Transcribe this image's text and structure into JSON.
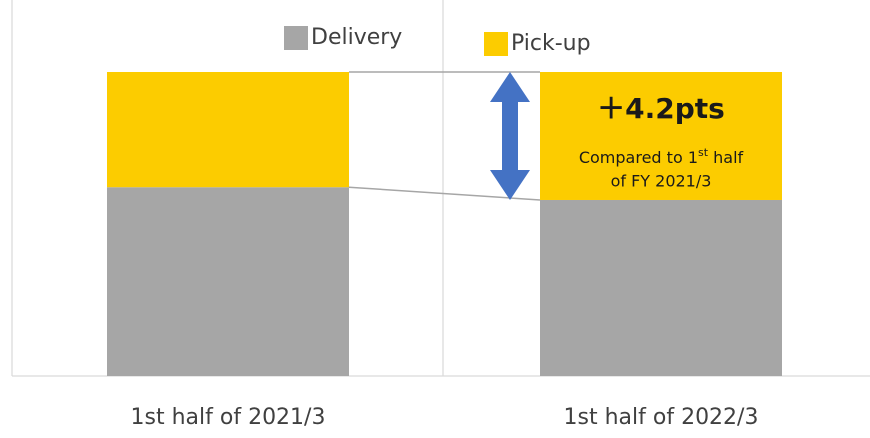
{
  "chart_data": {
    "type": "stacked_bar_100",
    "categories": [
      "1st half of 2021/3",
      "1st half of 2022/3"
    ],
    "series": [
      {
        "name": "Delivery",
        "color": "#a6a6a6",
        "values": [
          62.1,
          57.9
        ]
      },
      {
        "name": "Pick-up",
        "color": "#fccc00",
        "values": [
          37.9,
          42.1
        ]
      }
    ],
    "ylim": [
      0,
      100
    ],
    "annotation": {
      "headline": "＋4.2pts",
      "note_line1": [
        "Compared to 1",
        "st",
        " half"
      ],
      "note_line2": "of FY 2021/3",
      "arrow_color": "#4472c4"
    }
  }
}
